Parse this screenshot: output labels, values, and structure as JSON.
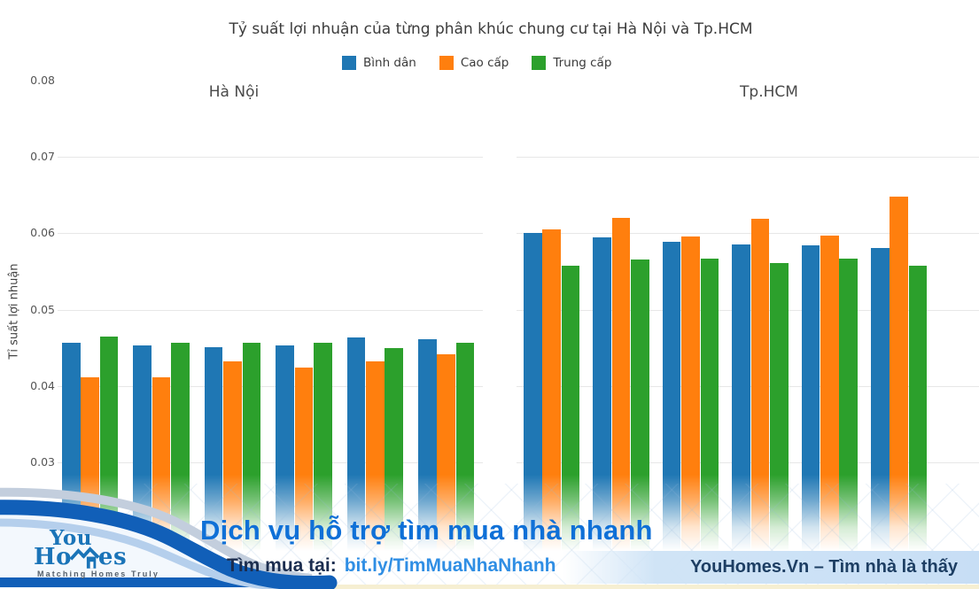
{
  "chart_data": {
    "type": "bar",
    "title": "Tỷ suất lợi nhuận của từng phân khúc chung cư tại Hà Nội và Tp.HCM",
    "ylabel": "Tỉ suất lợi nhuận",
    "xlabel": "",
    "ylim": [
      0.03,
      0.08
    ],
    "yticks": [
      0.08,
      0.07,
      0.06,
      0.05,
      0.04,
      0.03
    ],
    "grid": "horizontal, gridlines at 0.03-0.07 only",
    "legend_position": "top-center",
    "legend": [
      "Bình dân",
      "Cao cấp",
      "Trung cấp"
    ],
    "colors": [
      "#1f77b4",
      "#ff7f0e",
      "#2ca02c"
    ],
    "facets": [
      {
        "label": "Hà Nội",
        "series": [
          {
            "name": "Bình dân",
            "values": [
              0.0456,
              0.0453,
              0.0451,
              0.0453,
              0.0464,
              0.0461
            ]
          },
          {
            "name": "Cao cấp",
            "values": [
              0.0411,
              0.0411,
              0.0432,
              0.0424,
              0.0432,
              0.0442
            ]
          },
          {
            "name": "Trung cấp",
            "values": [
              0.0465,
              0.0457,
              0.0456,
              0.0456,
              0.0449,
              0.0457
            ]
          }
        ]
      },
      {
        "label": "Tp.HCM",
        "series": [
          {
            "name": "Bình dân",
            "values": [
              0.06,
              0.0594,
              0.0589,
              0.0585,
              0.0584,
              0.0581
            ]
          },
          {
            "name": "Cao cấp",
            "values": [
              0.0605,
              0.062,
              0.0596,
              0.0619,
              0.0597,
              0.0648
            ]
          },
          {
            "name": "Trung cấp",
            "values": [
              0.0557,
              0.0566,
              0.0567,
              0.0561,
              0.0567,
              0.0557
            ]
          }
        ]
      }
    ]
  },
  "banner": {
    "headline": "Dịch vụ hỗ trợ tìm mua nhà nhanh",
    "cta_label": "Tìm mua tại:",
    "cta_link": "bit.ly/TimMuaNhaNhanh",
    "tagline_right": "YouHomes.Vn – Tìm nhà là thấy",
    "logo": {
      "line1": "You",
      "line2_prefix": "Ho",
      "line2_suffix": "es",
      "slogan": "Matching Homes Truly"
    },
    "colors": {
      "headline_blue": "#0f70d7",
      "link_blue": "#2f8ee4",
      "navy": "#1d3e63",
      "ribbon_dark": "#115fb8",
      "ribbon_light_upper": "#c3cedd",
      "ribbon_light_under": "#b5cfec",
      "right_strip": "#c7def5",
      "cream_line": "#f6efd2",
      "logo_blue": "#1a74b8"
    }
  }
}
